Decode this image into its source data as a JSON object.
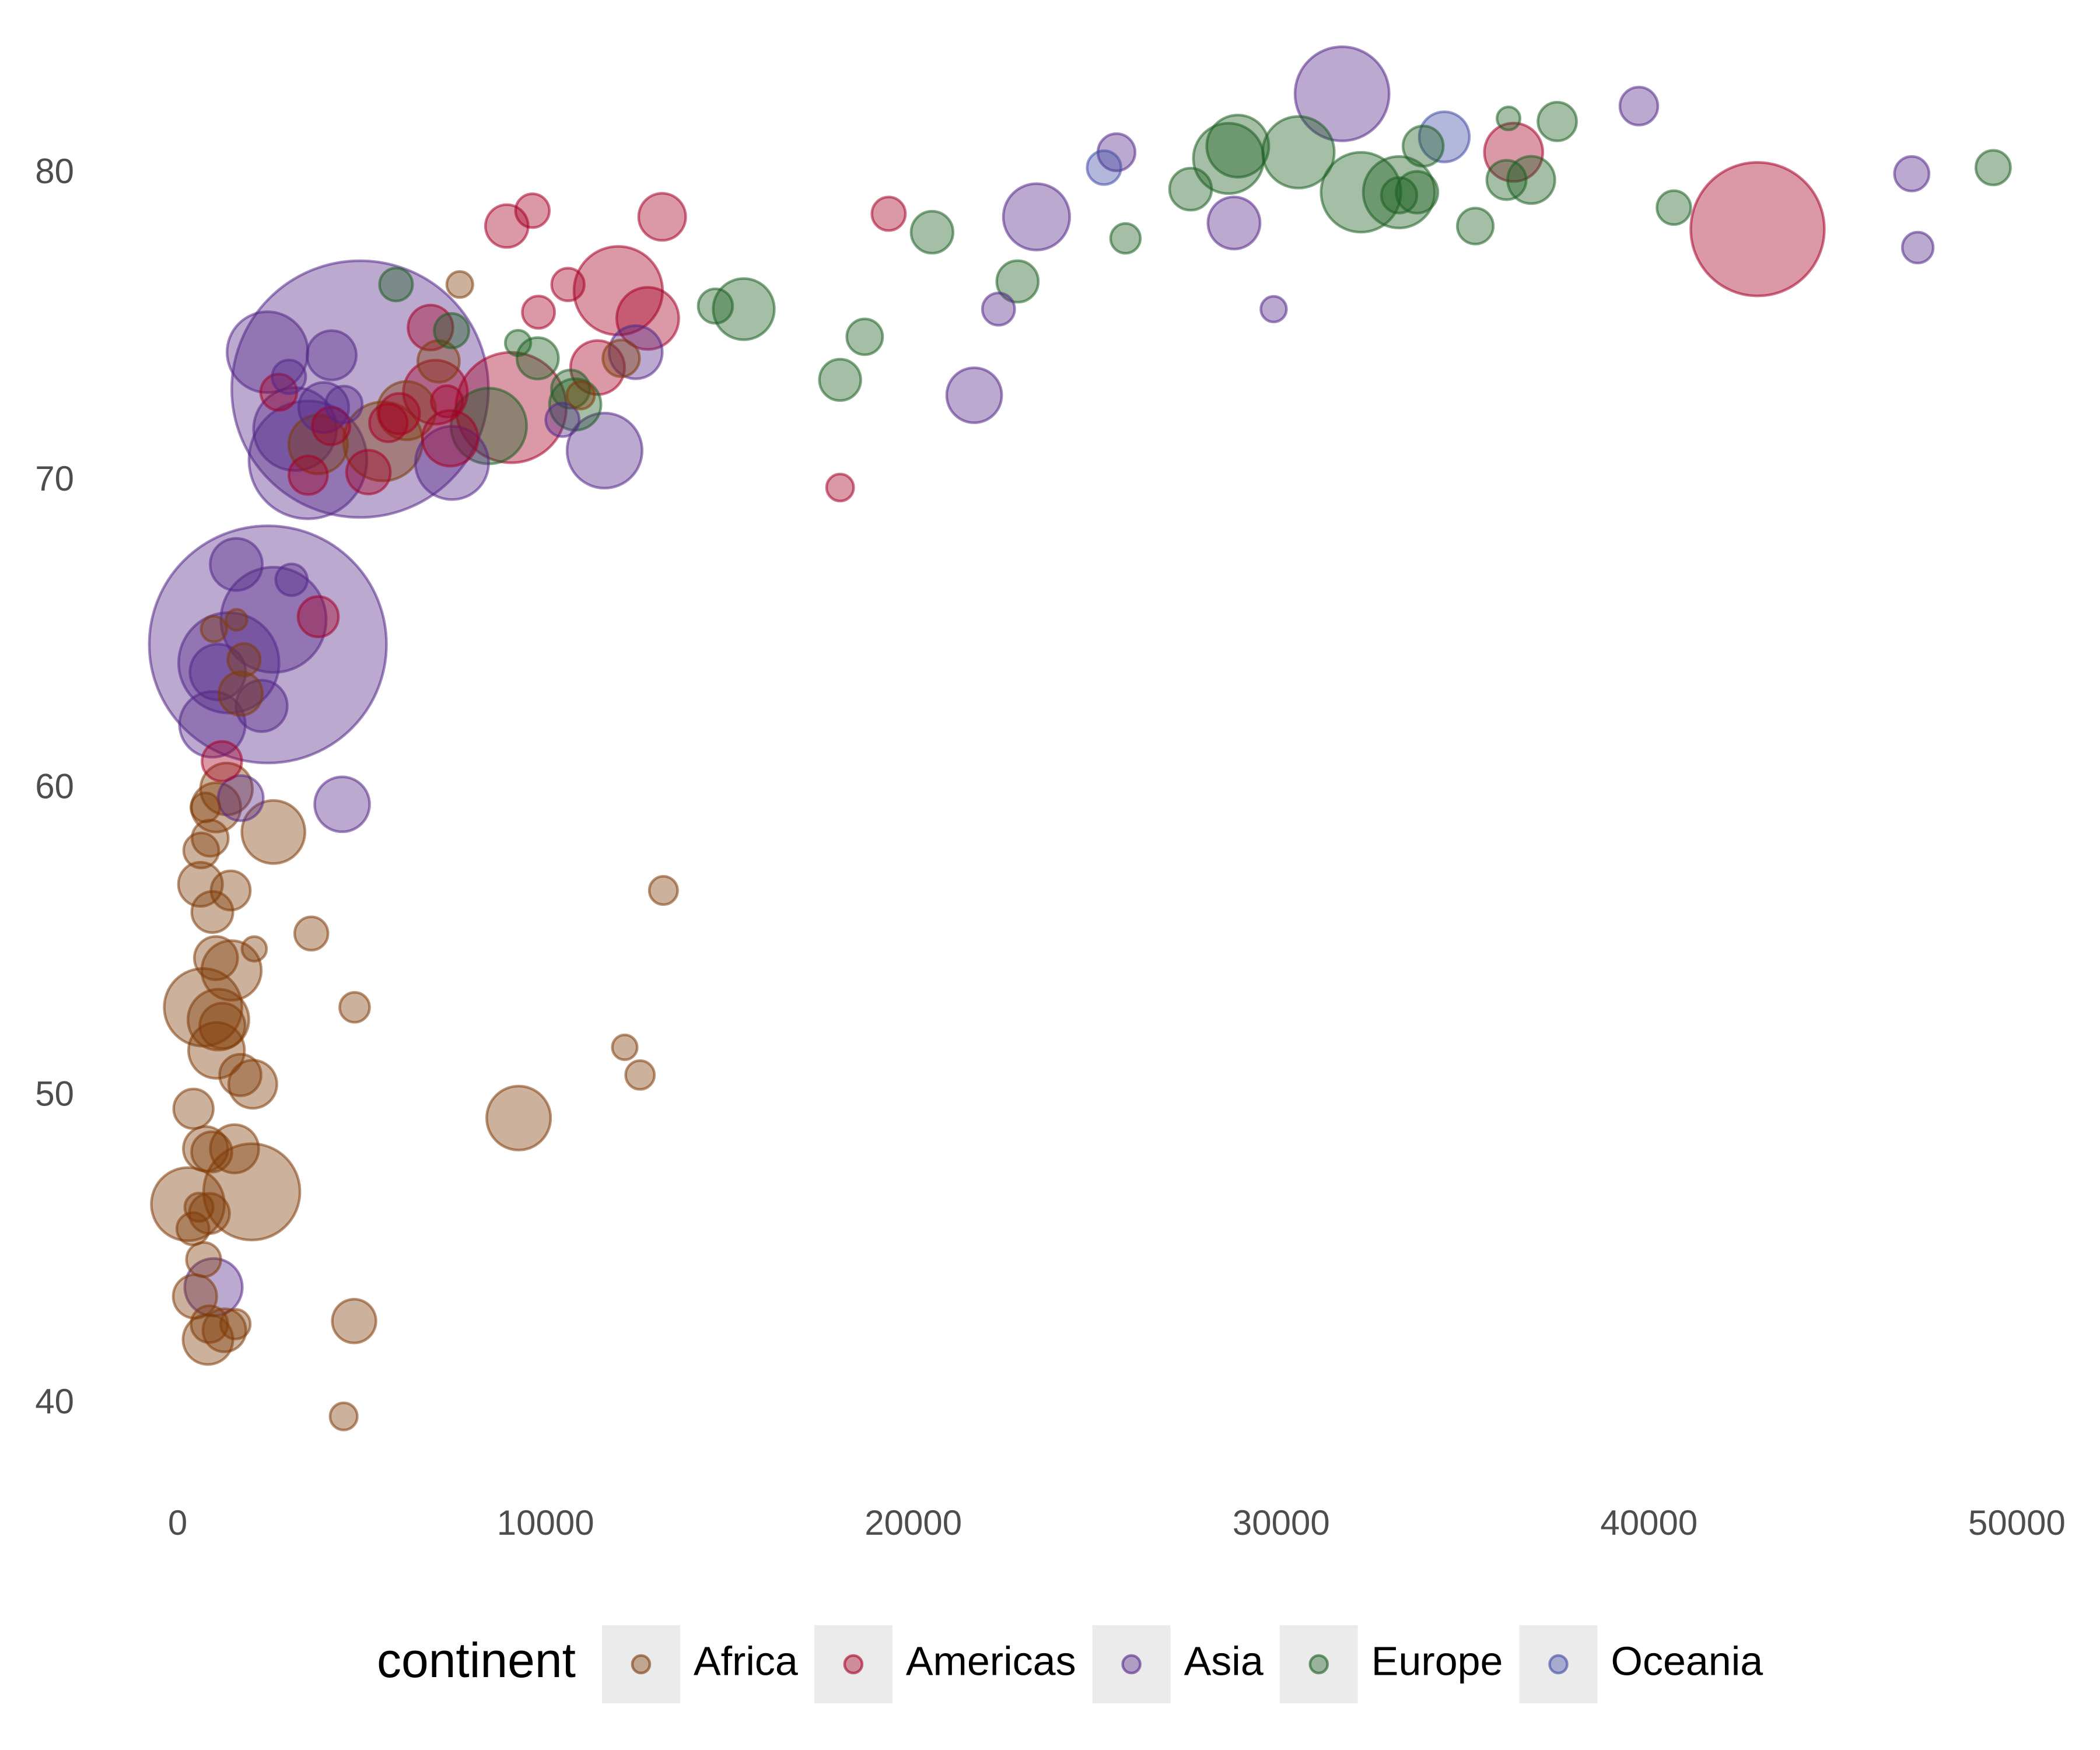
{
  "chart_data": {
    "type": "scatter",
    "xlim": [
      -1500,
      51500
    ],
    "ylim": [
      38,
      84
    ],
    "xticks": [
      0,
      10000,
      20000,
      30000,
      40000,
      50000
    ],
    "yticks": [
      40,
      50,
      60,
      70,
      80
    ],
    "legend_title": "continent",
    "legend_position": "bottom",
    "grid": false,
    "series": [
      {
        "name": "Africa",
        "color": "#7f3b08",
        "x": [
          6223,
          4797,
          1441,
          12570,
          1217,
          430,
          2042,
          706,
          1704,
          986,
          278,
          3633,
          1545,
          2082,
          5581,
          12154,
          641,
          691,
          13206,
          753,
          1328,
          943,
          579,
          1463,
          1569,
          415,
          12057,
          1045,
          759,
          1042,
          1803,
          10957,
          3820,
          824,
          4811,
          620,
          2014,
          7670,
          863,
          1598,
          1712,
          863,
          926,
          9270,
          2602,
          4513,
          1107,
          883,
          7093,
          1056,
          1271,
          470
        ],
        "values": [
          72.3,
          42.7,
          56.7,
          50.7,
          52.3,
          49.6,
          50.4,
          44.7,
          50.7,
          65.2,
          46.5,
          55.3,
          48.3,
          54.8,
          71.3,
          51.6,
          58.0,
          52.9,
          56.7,
          59.4,
          60.0,
          56.0,
          46.4,
          54.1,
          42.6,
          45.7,
          74.0,
          59.4,
          48.3,
          54.5,
          64.2,
          72.8,
          71.2,
          42.1,
          52.9,
          56.9,
          46.9,
          76.4,
          46.2,
          65.5,
          63.1,
          42.6,
          48.2,
          49.3,
          58.6,
          39.6,
          52.5,
          58.4,
          73.9,
          51.5,
          42.4,
          43.5
        ],
        "sizes": [
          33.3,
          12.4,
          8.1,
          1.6,
          14.3,
          8.4,
          17.7,
          4.4,
          10.2,
          0.7,
          64.6,
          3.8,
          18.0,
          0.5,
          80.3,
          0.55,
          4.9,
          76.5,
          1.45,
          1.7,
          22.9,
          9.9,
          1.5,
          35.6,
          2.0,
          3.2,
          6.0,
          19.2,
          13.3,
          12.0,
          3.3,
          1.25,
          33.8,
          20.0,
          2.05,
          12.9,
          135,
          0.8,
          8.9,
          0.2,
          12.3,
          6.1,
          9.1,
          44.0,
          42.3,
          1.1,
          38.1,
          5.7,
          10.3,
          29.2,
          11.7,
          12.3
        ]
      },
      {
        "name": "Americas",
        "color": "#a50026",
        "x": [
          12779,
          3822,
          9066,
          36319,
          13172,
          7007,
          9645,
          8948,
          6025,
          6873,
          5728,
          5186,
          1202,
          3548,
          7321,
          11978,
          2749,
          9809,
          4173,
          7409,
          19329,
          18009,
          42952,
          10611,
          11416
        ],
        "values": [
          75.3,
          65.6,
          72.4,
          80.7,
          78.6,
          72.9,
          78.8,
          78.3,
          72.2,
          75.0,
          71.9,
          70.3,
          60.9,
          70.2,
          72.6,
          76.2,
          72.9,
          75.5,
          71.8,
          71.4,
          78.7,
          69.8,
          78.2,
          76.4,
          73.7
        ],
        "sizes": [
          40.3,
          9.1,
          190,
          33.4,
          16.3,
          44.2,
          4.1,
          11.4,
          9.3,
          13.8,
          6.9,
          12.6,
          8.5,
          7.5,
          2.8,
          108.7,
          5.7,
          3.2,
          6.7,
          28.7,
          3.9,
          1.06,
          301,
          3.4,
          26.1
        ]
      },
      {
        "name": "Asia",
        "color": "#542788",
        "x": [
          975,
          29796,
          1391,
          1714,
          4959,
          39725,
          2452,
          3541,
          11606,
          4471,
          25523,
          31656,
          4519,
          1593,
          23348,
          47307,
          10461,
          12452,
          3096,
          944,
          1091,
          22316,
          2606,
          3190,
          21655,
          47143,
          3970,
          4185,
          28718,
          7458,
          2442,
          3025,
          2281
        ],
        "values": [
          43.8,
          75.6,
          64.1,
          59.7,
          73.0,
          82.2,
          64.7,
          70.7,
          71.0,
          59.5,
          80.7,
          82.6,
          72.5,
          67.3,
          78.6,
          77.6,
          72.0,
          74.2,
          66.8,
          62.1,
          63.8,
          75.6,
          65.5,
          71.7,
          72.8,
          80.0,
          72.4,
          74.1,
          78.4,
          70.6,
          74.2,
          73.4,
          62.7
        ],
        "sizes": [
          31.9,
          0.7,
          150,
          14.1,
          1319,
          6.98,
          1110,
          223,
          69.5,
          27.5,
          6.4,
          127,
          6.05,
          23.3,
          49.0,
          2.5,
          3.9,
          24.8,
          2.9,
          47.8,
          28.9,
          3.2,
          169,
          91.1,
          27.6,
          4.55,
          20.4,
          19.3,
          23.2,
          65.1,
          85.3,
          4.0,
          22.2
        ]
      },
      {
        "name": "Europe",
        "color": "#1b5e20",
        "x": [
          5937,
          36126,
          33693,
          7446,
          10681,
          14619,
          22833,
          35278,
          33207,
          30470,
          32170,
          27538,
          18009,
          36181,
          40676,
          28570,
          9254,
          36798,
          49357,
          15390,
          20510,
          10808,
          9787,
          18678,
          25768,
          28821,
          33860,
          37506,
          8458,
          33203
        ],
        "values": [
          76.4,
          79.8,
          79.4,
          74.9,
          73.0,
          75.7,
          76.5,
          78.3,
          79.3,
          80.7,
          79.4,
          79.5,
          73.3,
          81.8,
          78.9,
          80.5,
          74.5,
          79.8,
          80.2,
          75.6,
          78.1,
          72.5,
          74.0,
          74.7,
          77.9,
          80.9,
          80.9,
          81.7,
          71.8,
          79.4
        ],
        "sizes": [
          3.6,
          8.2,
          10.4,
          4.55,
          7.3,
          4.5,
          10.2,
          5.5,
          5.2,
          61.1,
          82.4,
          10.7,
          10.0,
          0.3,
          4.1,
          58.1,
          0.68,
          16.6,
          4.6,
          38.5,
          10.6,
          22.3,
          10.2,
          5.4,
          2.0,
          40.4,
          9.0,
          7.55,
          71.2,
          60.8
        ]
      },
      {
        "name": "Oceania",
        "color": "#3f4aa5",
        "x": [
          34435,
          25185
        ],
        "values": [
          81.2,
          80.2
        ],
        "sizes": [
          20.4,
          4.1
        ]
      }
    ]
  }
}
